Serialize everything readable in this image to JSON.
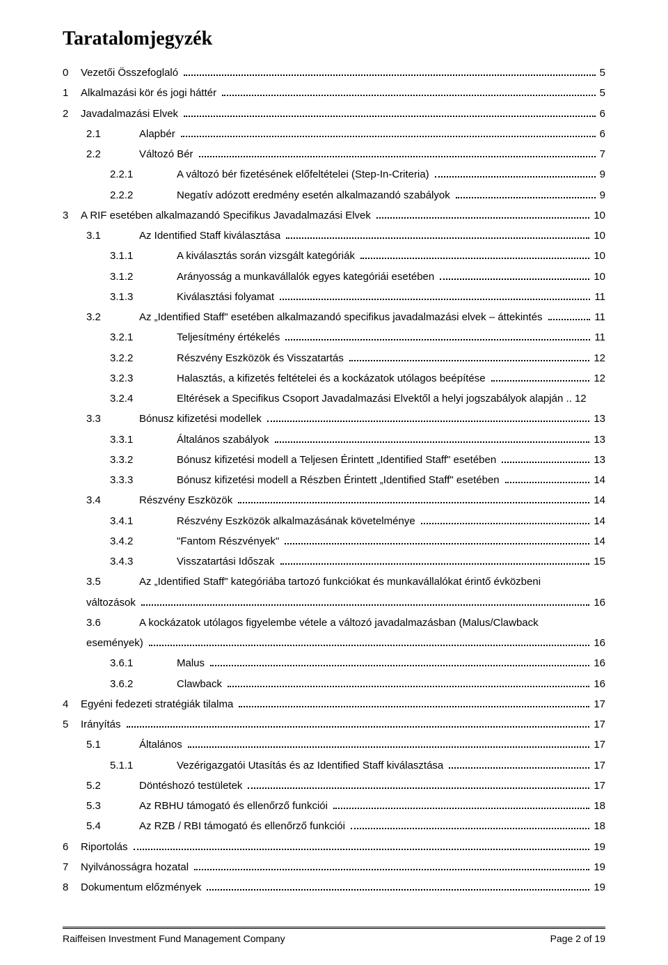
{
  "title": "Taratalomjegyzék",
  "footer": {
    "left": "Raiffeisen Investment Fund Management Company",
    "right_prefix": "Page ",
    "page_current": "2",
    "page_sep": " of ",
    "page_total": "19"
  },
  "toc": [
    {
      "lvl": 0,
      "num": "0",
      "label": "Vezetői Összefoglaló",
      "page": "5"
    },
    {
      "lvl": 0,
      "num": "1",
      "label": "Alkalmazási kör és jogi háttér",
      "page": "5"
    },
    {
      "lvl": 0,
      "num": "2",
      "label": "Javadalmazási Elvek",
      "page": "6"
    },
    {
      "lvl": 1,
      "num": "2.1",
      "label": "Alapbér",
      "page": "6"
    },
    {
      "lvl": 1,
      "num": "2.2",
      "label": "Változó Bér",
      "page": "7"
    },
    {
      "lvl": 2,
      "num": "2.2.1",
      "label": "A változó bér fizetésének előfeltételei (Step-In-Criteria)",
      "page": "9"
    },
    {
      "lvl": 2,
      "num": "2.2.2",
      "label": "Negatív adózott eredmény esetén alkalmazandó szabályok",
      "page": "9"
    },
    {
      "lvl": 0,
      "num": "3",
      "label": "A RIF esetében alkalmazandó Specifikus Javadalmazási Elvek",
      "page": "10"
    },
    {
      "lvl": 1,
      "num": "3.1",
      "label": "Az Identified Staff kiválasztása",
      "page": "10"
    },
    {
      "lvl": 2,
      "num": "3.1.1",
      "label": "A kiválasztás során vizsgált kategóriák",
      "page": "10"
    },
    {
      "lvl": 2,
      "num": "3.1.2",
      "label": "Arányosság a munkavállalók egyes kategóriái esetében",
      "page": "10"
    },
    {
      "lvl": 2,
      "num": "3.1.3",
      "label": "Kiválasztási folyamat",
      "page": "11"
    },
    {
      "lvl": 1,
      "num": "3.2",
      "label": "Az „Identified Staff\" esetében alkalmazandó specifikus javadalmazási elvek – áttekintés",
      "page": "11"
    },
    {
      "lvl": 2,
      "num": "3.2.1",
      "label": "Teljesítmény értékelés",
      "page": "11"
    },
    {
      "lvl": 2,
      "num": "3.2.2",
      "label": "Részvény Eszközök és Visszatartás",
      "page": "12"
    },
    {
      "lvl": 2,
      "num": "3.2.3",
      "label": "Halasztás, a kifizetés feltételei és a kockázatok utólagos beépítése",
      "page": "12"
    },
    {
      "lvl": 2,
      "num": "3.2.4",
      "label": "Eltérések a Specifikus Csoport Javadalmazási Elvektől a helyi jogszabályok alapján",
      "page": "12",
      "nodots": true
    },
    {
      "lvl": 1,
      "num": "3.3",
      "label": "Bónusz kifizetési modellek",
      "page": "13"
    },
    {
      "lvl": 2,
      "num": "3.3.1",
      "label": "Általános szabályok",
      "page": "13"
    },
    {
      "lvl": 2,
      "num": "3.3.2",
      "label": "Bónusz kifizetési modell a Teljesen Érintett „Identified Staff\" esetében",
      "page": "13"
    },
    {
      "lvl": 2,
      "num": "3.3.3",
      "label": "Bónusz kifizetési modell a Részben Érintett „Identified Staff\" esetében",
      "page": "14"
    },
    {
      "lvl": 1,
      "num": "3.4",
      "label": "Részvény Eszközök",
      "page": "14"
    },
    {
      "lvl": 2,
      "num": "3.4.1",
      "label": "Részvény Eszközök alkalmazásának követelménye",
      "page": "14"
    },
    {
      "lvl": 2,
      "num": "3.4.2",
      "label": "\"Fantom Részvények\"",
      "page": "14"
    },
    {
      "lvl": 2,
      "num": "3.4.3",
      "label": "Visszatartási Időszak",
      "page": "15"
    },
    {
      "lvl": 1,
      "num": "3.5",
      "label_l1": "Az „Identified Staff\" kategóriába tartozó funkciókat és munkavállalókat érintő évközbeni",
      "label_l2": "változások",
      "page": "16",
      "wrap": true
    },
    {
      "lvl": 1,
      "num": "3.6",
      "label_l1": "A kockázatok utólagos figyelembe vétele a változó javadalmazásban (Malus/Clawback",
      "label_l2": "események)",
      "page": "16",
      "wrap": true
    },
    {
      "lvl": 2,
      "num": "3.6.1",
      "label": "Malus",
      "page": "16"
    },
    {
      "lvl": 2,
      "num": "3.6.2",
      "label": "Clawback",
      "page": "16"
    },
    {
      "lvl": 0,
      "num": "4",
      "label": "Egyéni fedezeti stratégiák tilalma",
      "page": "17"
    },
    {
      "lvl": 0,
      "num": "5",
      "label": "Irányítás",
      "page": "17"
    },
    {
      "lvl": 1,
      "num": "5.1",
      "label": "Általános",
      "page": "17"
    },
    {
      "lvl": 2,
      "num": "5.1.1",
      "label": "Vezérigazgatói Utasítás és az Identified Staff kiválasztása",
      "page": "17"
    },
    {
      "lvl": 1,
      "num": "5.2",
      "label": "Döntéshozó testületek",
      "page": "17"
    },
    {
      "lvl": 1,
      "num": "5.3",
      "label": "Az RBHU támogató és ellenőrző funkciói",
      "page": "18"
    },
    {
      "lvl": 1,
      "num": "5.4",
      "label": "Az RZB / RBI támogató és ellenőrző funkciói",
      "page": "18"
    },
    {
      "lvl": 0,
      "num": "6",
      "label": "Riportolás",
      "page": "19"
    },
    {
      "lvl": 0,
      "num": "7",
      "label": "Nyilvánosságra hozatal",
      "page": "19"
    },
    {
      "lvl": 0,
      "num": "8",
      "label": "Dokumentum előzmények",
      "page": "19"
    }
  ]
}
